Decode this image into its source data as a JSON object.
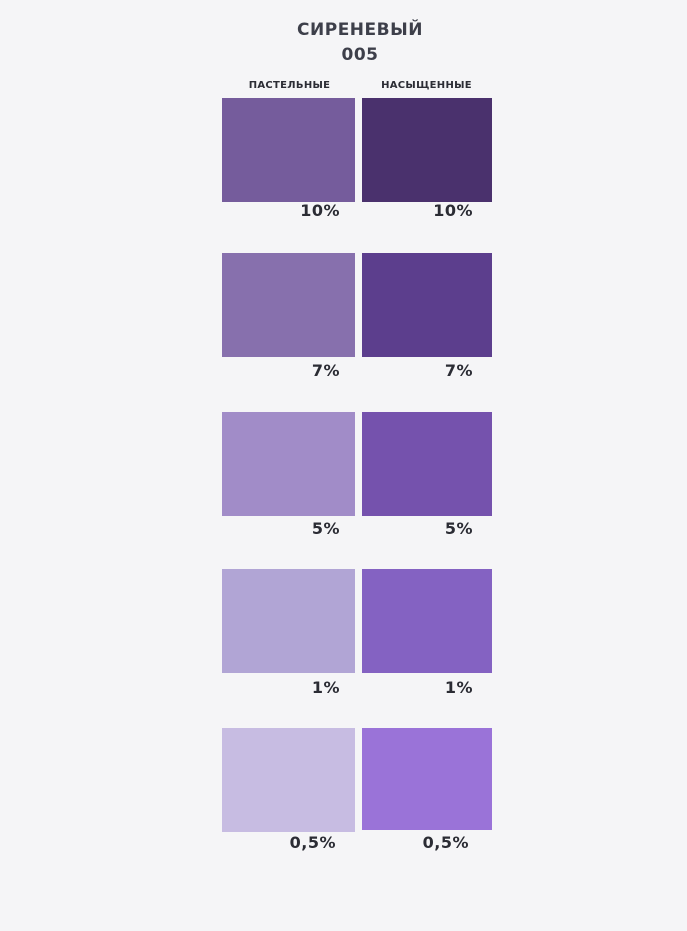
{
  "header": {
    "title": "СИРЕНЕВЫЙ",
    "code": "005"
  },
  "columns": [
    {
      "label": "ПАСТЕЛЬНЫЕ"
    },
    {
      "label": "НАСЫЩЕННЫЕ"
    }
  ],
  "rows": [
    {
      "pastel": {
        "color": "#755c9c",
        "label": "10%"
      },
      "saturated": {
        "color": "#4a316d",
        "label": "10%"
      }
    },
    {
      "pastel": {
        "color": "#8770ad",
        "label": "7%"
      },
      "saturated": {
        "color": "#5c3e8d",
        "label": "7%"
      }
    },
    {
      "pastel": {
        "color": "#a18cc8",
        "label": "5%"
      },
      "saturated": {
        "color": "#7552ad",
        "label": "5%"
      }
    },
    {
      "pastel": {
        "color": "#b1a5d5",
        "label": "1%"
      },
      "saturated": {
        "color": "#8462c2",
        "label": "1%"
      }
    },
    {
      "pastel": {
        "color": "#c7bce2",
        "label": "0,5%"
      },
      "saturated": {
        "color": "#9a73d8",
        "label": "0,5%"
      }
    }
  ]
}
